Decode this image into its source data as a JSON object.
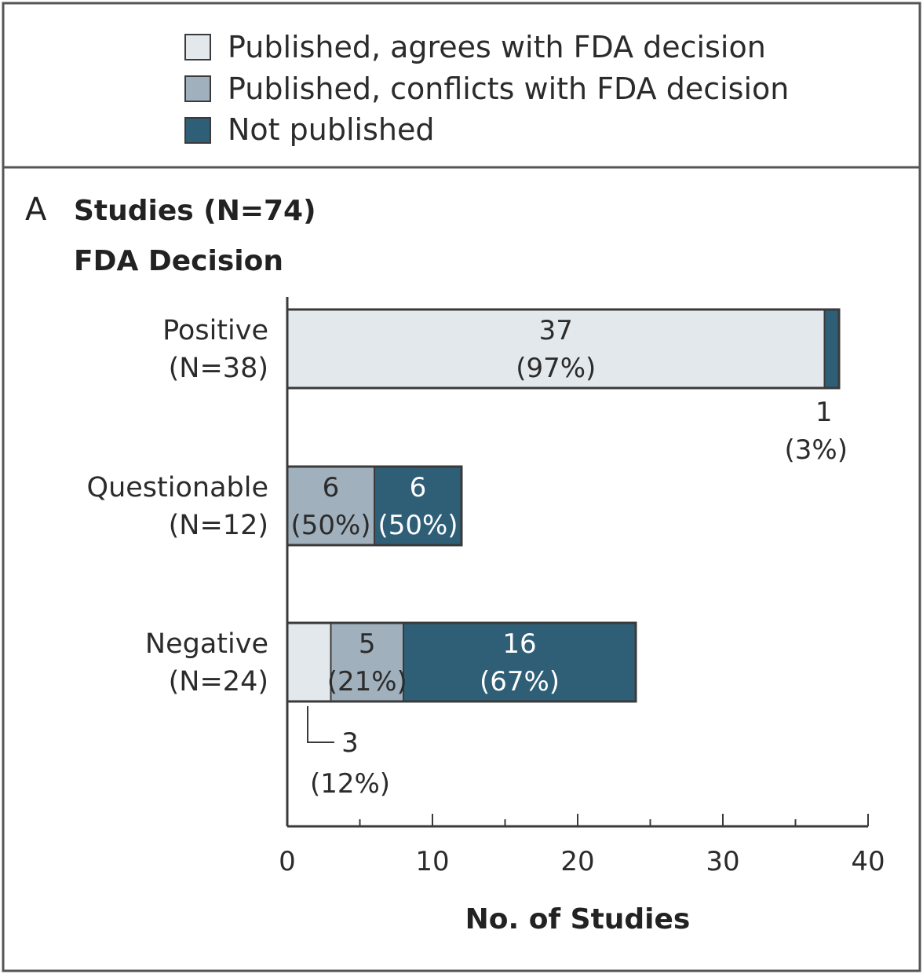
{
  "chart_data": {
    "type": "bar",
    "orientation": "horizontal",
    "stacked": true,
    "panel_letter": "A",
    "title": "Studies (N=74)",
    "subtitle": "FDA Decision",
    "xlabel": "No. of Studies",
    "xlim": [
      0,
      40
    ],
    "x_ticks": [
      0,
      10,
      20,
      30,
      40
    ],
    "legend_position": "top",
    "categories": [
      {
        "name": "Positive",
        "n_label": "(N=38)"
      },
      {
        "name": "Questionable",
        "n_label": "(N=12)"
      },
      {
        "name": "Negative",
        "n_label": "(N=24)"
      }
    ],
    "series": [
      {
        "name": "Published, agrees with FDA decision",
        "color": "#e3e8ec",
        "values": [
          37,
          0,
          3
        ],
        "labels": [
          [
            "37",
            "(97%)"
          ],
          null,
          [
            "3",
            "(12%)"
          ]
        ]
      },
      {
        "name": "Published, conflicts with FDA decision",
        "color": "#a0b0bd",
        "values": [
          0,
          6,
          5
        ],
        "labels": [
          null,
          [
            "6",
            "(50%)"
          ],
          [
            "5",
            "(21%)"
          ]
        ]
      },
      {
        "name": "Not published",
        "color": "#2f5f77",
        "values": [
          1,
          6,
          16
        ],
        "labels": [
          [
            "1",
            "(3%)"
          ],
          [
            "6",
            "(50%)"
          ],
          [
            "16",
            "(67%)"
          ]
        ]
      }
    ]
  }
}
